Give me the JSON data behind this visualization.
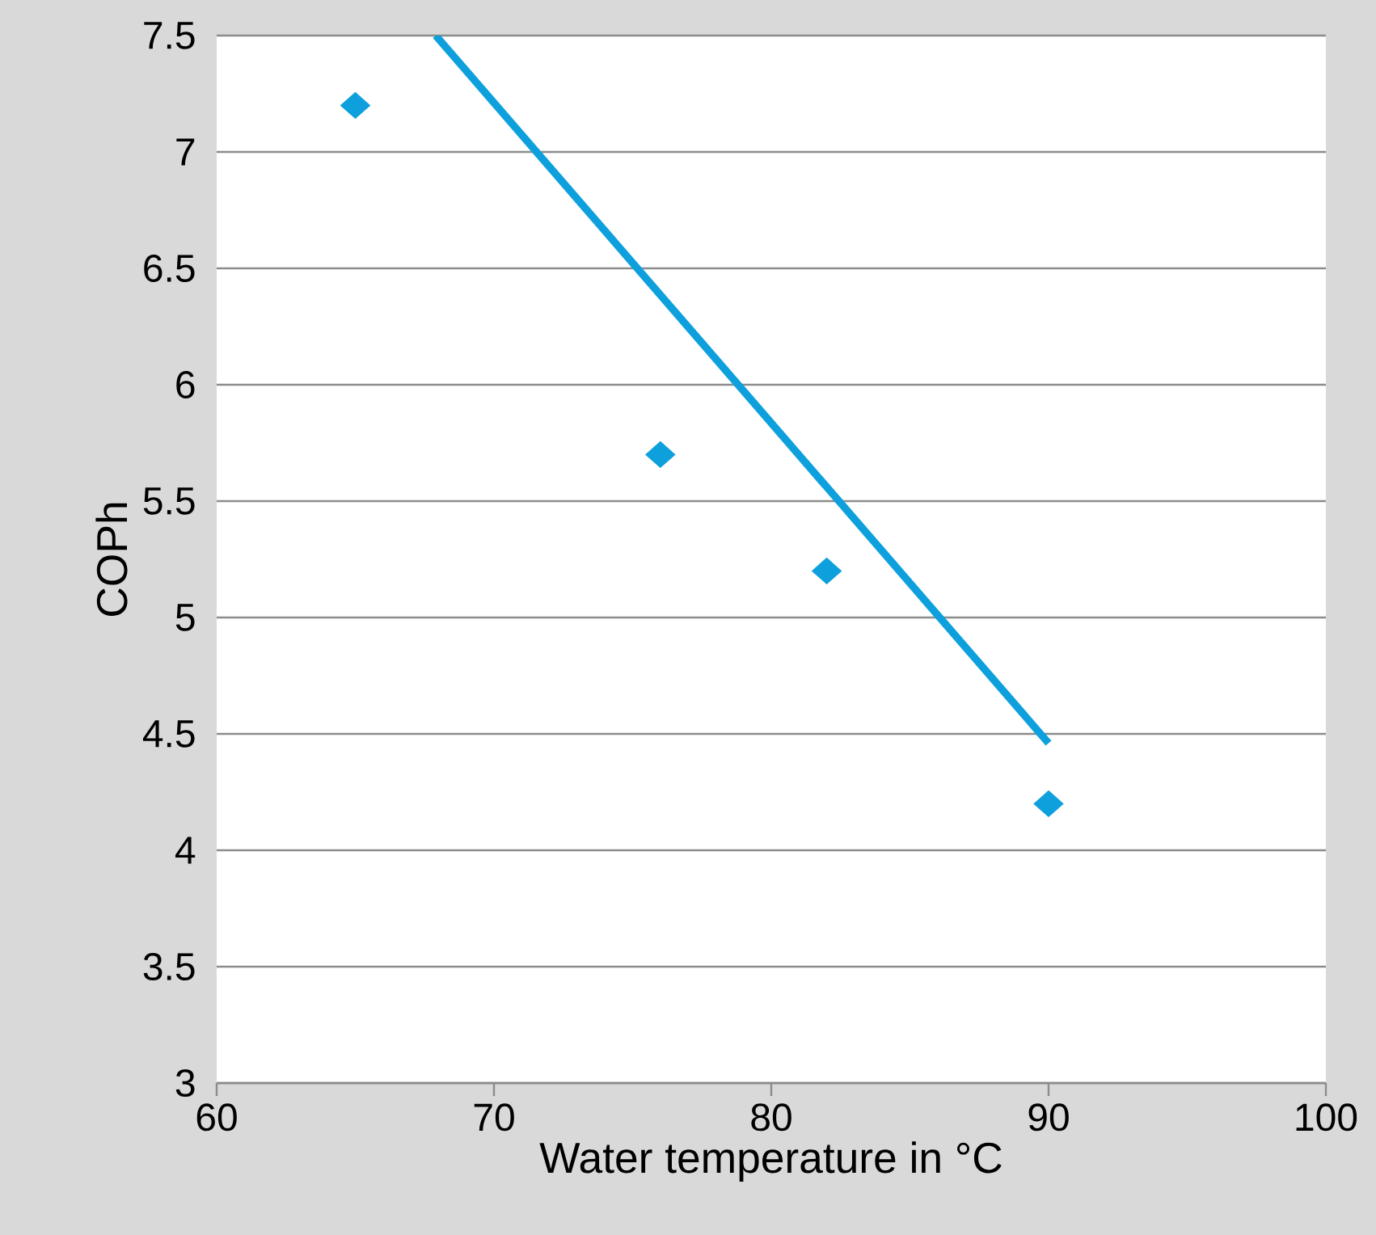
{
  "chart_data": {
    "type": "scatter",
    "xlabel": "Water temperature in °C",
    "ylabel": "COPh",
    "xlim": [
      60,
      100
    ],
    "xticks": [
      60,
      70,
      80,
      90,
      100
    ],
    "ylim": [
      3,
      7.5
    ],
    "yticks": [
      3,
      3.5,
      4,
      4.5,
      5,
      5.5,
      6,
      6.5,
      7,
      7.5
    ],
    "grid": "y",
    "marker": "diamond",
    "series": [
      {
        "color": "#0ea0dc",
        "x": [
          65,
          76,
          82,
          90
        ],
        "values": [
          7.2,
          5.7,
          5.2,
          4.2
        ]
      },
      {
        "type": "line",
        "color": "#0ea0dc",
        "marker": "none",
        "x": [
          67.9,
          90
        ],
        "values": [
          7.5,
          4.46
        ]
      }
    ]
  }
}
